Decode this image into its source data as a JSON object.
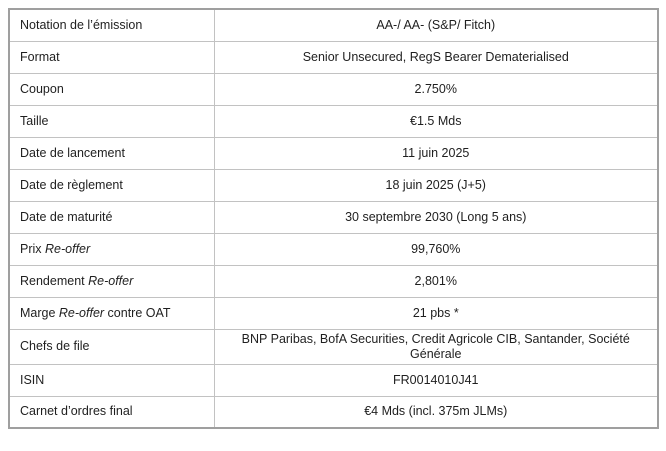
{
  "colors": {
    "border_outer": "#9f9f9f",
    "border_inner": "#c2c2c2",
    "text": "#1f1f1f",
    "background": "#ffffff"
  },
  "table": {
    "rows": [
      {
        "label_parts": [
          {
            "text": "Notation de l’émission"
          }
        ],
        "value": "AA-/ AA- (S&P/ Fitch)"
      },
      {
        "label_parts": [
          {
            "text": "Format"
          }
        ],
        "value": "Senior Unsecured, RegS Bearer Dematerialised"
      },
      {
        "label_parts": [
          {
            "text": "Coupon"
          }
        ],
        "value": "2.750%"
      },
      {
        "label_parts": [
          {
            "text": "Taille"
          }
        ],
        "value": "€1.5 Mds"
      },
      {
        "label_parts": [
          {
            "text": "Date de lancement"
          }
        ],
        "value": "11 juin 2025"
      },
      {
        "label_parts": [
          {
            "text": "Date de règlement"
          }
        ],
        "value": "18 juin 2025 (J+5)"
      },
      {
        "label_parts": [
          {
            "text": "Date de maturité"
          }
        ],
        "value": "30 septembre 2030 (Long 5 ans)"
      },
      {
        "label_parts": [
          {
            "text": "Prix "
          },
          {
            "text": "Re-offer",
            "italic": true
          }
        ],
        "value": "99,760%"
      },
      {
        "label_parts": [
          {
            "text": "Rendement "
          },
          {
            "text": "Re-offer",
            "italic": true
          }
        ],
        "value": "2,801%"
      },
      {
        "label_parts": [
          {
            "text": "Marge "
          },
          {
            "text": "Re-offer",
            "italic": true
          },
          {
            "text": " contre OAT"
          }
        ],
        "value": "21 pbs *"
      },
      {
        "label_parts": [
          {
            "text": "Chefs de file"
          }
        ],
        "value": "BNP Paribas, BofA Securities, Credit Agricole CIB, Santander, Société Générale"
      },
      {
        "label_parts": [
          {
            "text": "ISIN"
          }
        ],
        "value": "FR0014010J41"
      },
      {
        "label_parts": [
          {
            "text": "Carnet d’ordres final"
          }
        ],
        "value": "€4 Mds (incl. 375m JLMs)"
      }
    ]
  }
}
